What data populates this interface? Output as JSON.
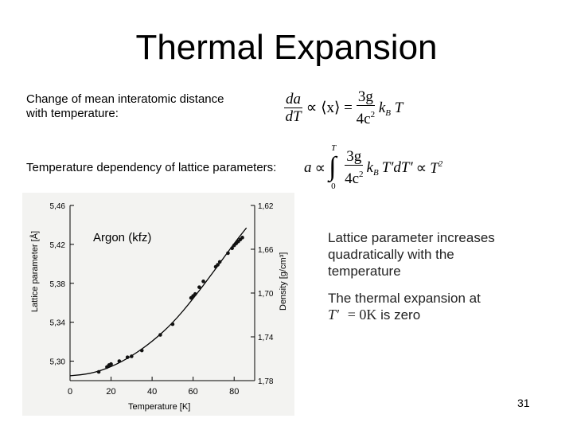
{
  "title": "Thermal Expansion",
  "text": {
    "line1": "Change of mean interatomic distance",
    "line2": "with temperature:",
    "line3": "Temperature dependency of lattice parameters:"
  },
  "formula1": {
    "lhs_num": "da",
    "lhs_den": "dT",
    "prop": "∝",
    "avg": "⟨x⟩",
    "eq": "=",
    "num": "3g",
    "den": "4c",
    "den_sup": "2",
    "k": "k",
    "k_sub": "B",
    "T": "T"
  },
  "formula2": {
    "a": "a",
    "prop": "∝",
    "int_upper": "T",
    "int_lower": "0",
    "num": "3g",
    "den": "4c",
    "den_sup": "2",
    "k": "k",
    "k_sub": "B",
    "body": "T′dT′",
    "rhs": "T",
    "rhs_sup": "2"
  },
  "chart_data": {
    "type": "scatter",
    "title": "Argon (kfz)",
    "xlabel": "Temperature [K]",
    "ylabel": "Lattice parameter [Å]",
    "y2label": "Density [g/cm³]",
    "xlim": [
      0,
      90
    ],
    "ylim": [
      5.28,
      5.46
    ],
    "y2lim": [
      1.78,
      1.62
    ],
    "x_ticks": [
      "0",
      "20",
      "40",
      "60",
      "80"
    ],
    "y_ticks": [
      "5,46",
      "5,42",
      "5,38",
      "5,34",
      "5,30"
    ],
    "y2_ticks": [
      "1,62",
      "1,66",
      "1,70",
      "1,74",
      "1,78"
    ],
    "grid": false,
    "points": [
      {
        "x": 14,
        "y": 5.289
      },
      {
        "x": 18,
        "y": 5.294
      },
      {
        "x": 19,
        "y": 5.296
      },
      {
        "x": 20,
        "y": 5.297
      },
      {
        "x": 24,
        "y": 5.3
      },
      {
        "x": 28,
        "y": 5.304
      },
      {
        "x": 30,
        "y": 5.305
      },
      {
        "x": 35,
        "y": 5.311
      },
      {
        "x": 44,
        "y": 5.327
      },
      {
        "x": 50,
        "y": 5.338
      },
      {
        "x": 59,
        "y": 5.365
      },
      {
        "x": 60,
        "y": 5.367
      },
      {
        "x": 61,
        "y": 5.369
      },
      {
        "x": 63,
        "y": 5.376
      },
      {
        "x": 65,
        "y": 5.382
      },
      {
        "x": 71,
        "y": 5.397
      },
      {
        "x": 72,
        "y": 5.399
      },
      {
        "x": 73,
        "y": 5.402
      },
      {
        "x": 77,
        "y": 5.411
      },
      {
        "x": 79,
        "y": 5.416
      },
      {
        "x": 80,
        "y": 5.419
      },
      {
        "x": 81,
        "y": 5.421
      },
      {
        "x": 82,
        "y": 5.423
      },
      {
        "x": 83,
        "y": 5.425
      },
      {
        "x": 84,
        "y": 5.427
      }
    ],
    "curve": [
      {
        "x": 0,
        "y": 5.285
      },
      {
        "x": 10,
        "y": 5.287
      },
      {
        "x": 20,
        "y": 5.294
      },
      {
        "x": 30,
        "y": 5.305
      },
      {
        "x": 40,
        "y": 5.32
      },
      {
        "x": 50,
        "y": 5.339
      },
      {
        "x": 60,
        "y": 5.364
      },
      {
        "x": 70,
        "y": 5.392
      },
      {
        "x": 80,
        "y": 5.421
      },
      {
        "x": 86,
        "y": 5.437
      }
    ]
  },
  "notes": {
    "note1_line1": "Lattice parameter increases",
    "note1_line2": "quadratically with the",
    "note1_line3": "temperature",
    "note2_line1": "The thermal expansion at",
    "note2_var": "T′",
    "note2_eq": "= 0K",
    "note2_end": "is  zero"
  },
  "page_number": "31"
}
